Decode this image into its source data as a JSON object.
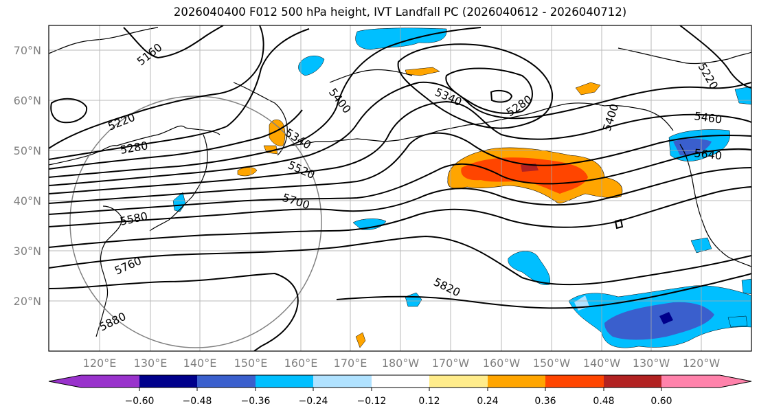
{
  "title": "2026040400 F012 500 hPa height, IVT Landfall PC (2026040612 - 2026040712)",
  "lat_labels": [
    "70°N",
    "60°N",
    "50°N",
    "40°N",
    "30°N",
    "20°N"
  ],
  "lon_labels": [
    "120°E",
    "130°E",
    "140°E",
    "150°E",
    "160°E",
    "170°E",
    "180°W",
    "170°W",
    "160°W",
    "150°W",
    "140°W",
    "130°W",
    "120°W"
  ],
  "contour_labels": [
    "5160",
    "5220",
    "5280",
    "5400",
    "5340",
    "5520",
    "5700",
    "5580",
    "5760",
    "5880",
    "5340",
    "5280",
    "5820",
    "5400",
    "5460",
    "5640",
    "5220"
  ],
  "colorbar": {
    "ticks": [
      "−0.60",
      "−0.48",
      "−0.36",
      "−0.24",
      "−0.12",
      "0.12",
      "0.24",
      "0.36",
      "0.48",
      "0.60"
    ],
    "colors": [
      "#9932cc",
      "#00008b",
      "#3a5fcd",
      "#00bfff",
      "#b0e2ff",
      "#ffffff",
      "#ffec8b",
      "#ffa500",
      "#ff4500",
      "#b22222",
      "#ff82ab"
    ]
  },
  "fill_colors": {
    "lightblue": "#b0e2ff",
    "blue": "#00bfff",
    "midblue": "#3a5fcd",
    "navy": "#00008b",
    "yellow": "#ffec8b",
    "orange": "#ffa500",
    "red": "#ff4500",
    "darkred": "#b22222"
  }
}
